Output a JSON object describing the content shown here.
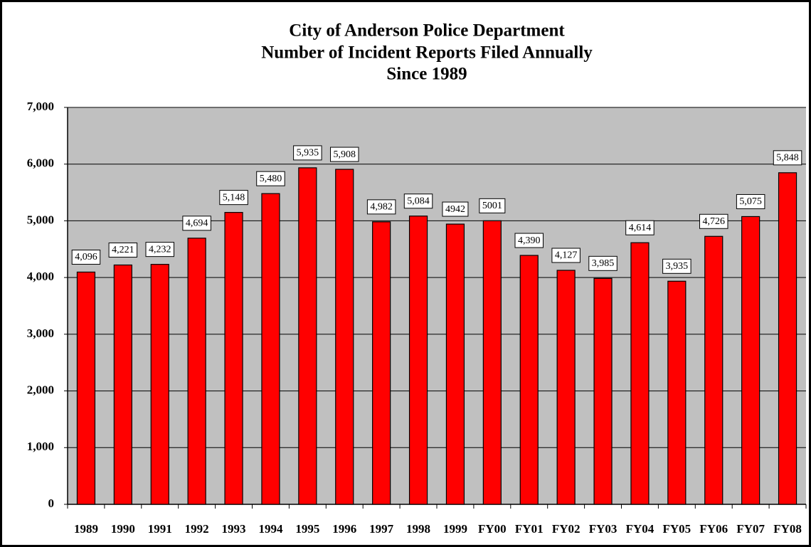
{
  "chart_data": {
    "type": "bar",
    "title": [
      "City of Anderson Police Department",
      "Number of Incident Reports Filed Annually",
      "Since 1989"
    ],
    "categories": [
      "1989",
      "1990",
      "1991",
      "1992",
      "1993",
      "1994",
      "1995",
      "1996",
      "1997",
      "1998",
      "1999",
      "FY00",
      "FY01",
      "FY02",
      "FY03",
      "FY04",
      "FY05",
      "FY06",
      "FY07",
      "FY08"
    ],
    "values": [
      4096,
      4221,
      4232,
      4694,
      5148,
      5480,
      5935,
      5908,
      4982,
      5084,
      4942,
      5001,
      4390,
      4127,
      3985,
      4614,
      3935,
      4726,
      5075,
      5848
    ],
    "value_labels": [
      "4,096",
      "4,221",
      "4,232",
      "4,694",
      "5,148",
      "5,480",
      "5,935",
      "5,908",
      "4,982",
      "5,084",
      "4942",
      "5001",
      "4,390",
      "4,127",
      "3,985",
      "4,614",
      "3,935",
      "4,726",
      "5,075",
      "5,848"
    ],
    "color": "#ff0000",
    "ylim": [
      0,
      7000
    ],
    "yticks": [
      0,
      {
        "value": 1000,
        "label": "1,000"
      },
      {
        "value": 2000,
        "label": "2,000"
      },
      {
        "value": 3000,
        "label": "3,000"
      },
      {
        "value": 4000,
        "label": "4,000"
      },
      {
        "value": 5000,
        "label": "5,000"
      },
      {
        "value": 6000,
        "label": "6,000"
      },
      {
        "value": 7000,
        "label": "7,000"
      }
    ],
    "grid": true
  }
}
